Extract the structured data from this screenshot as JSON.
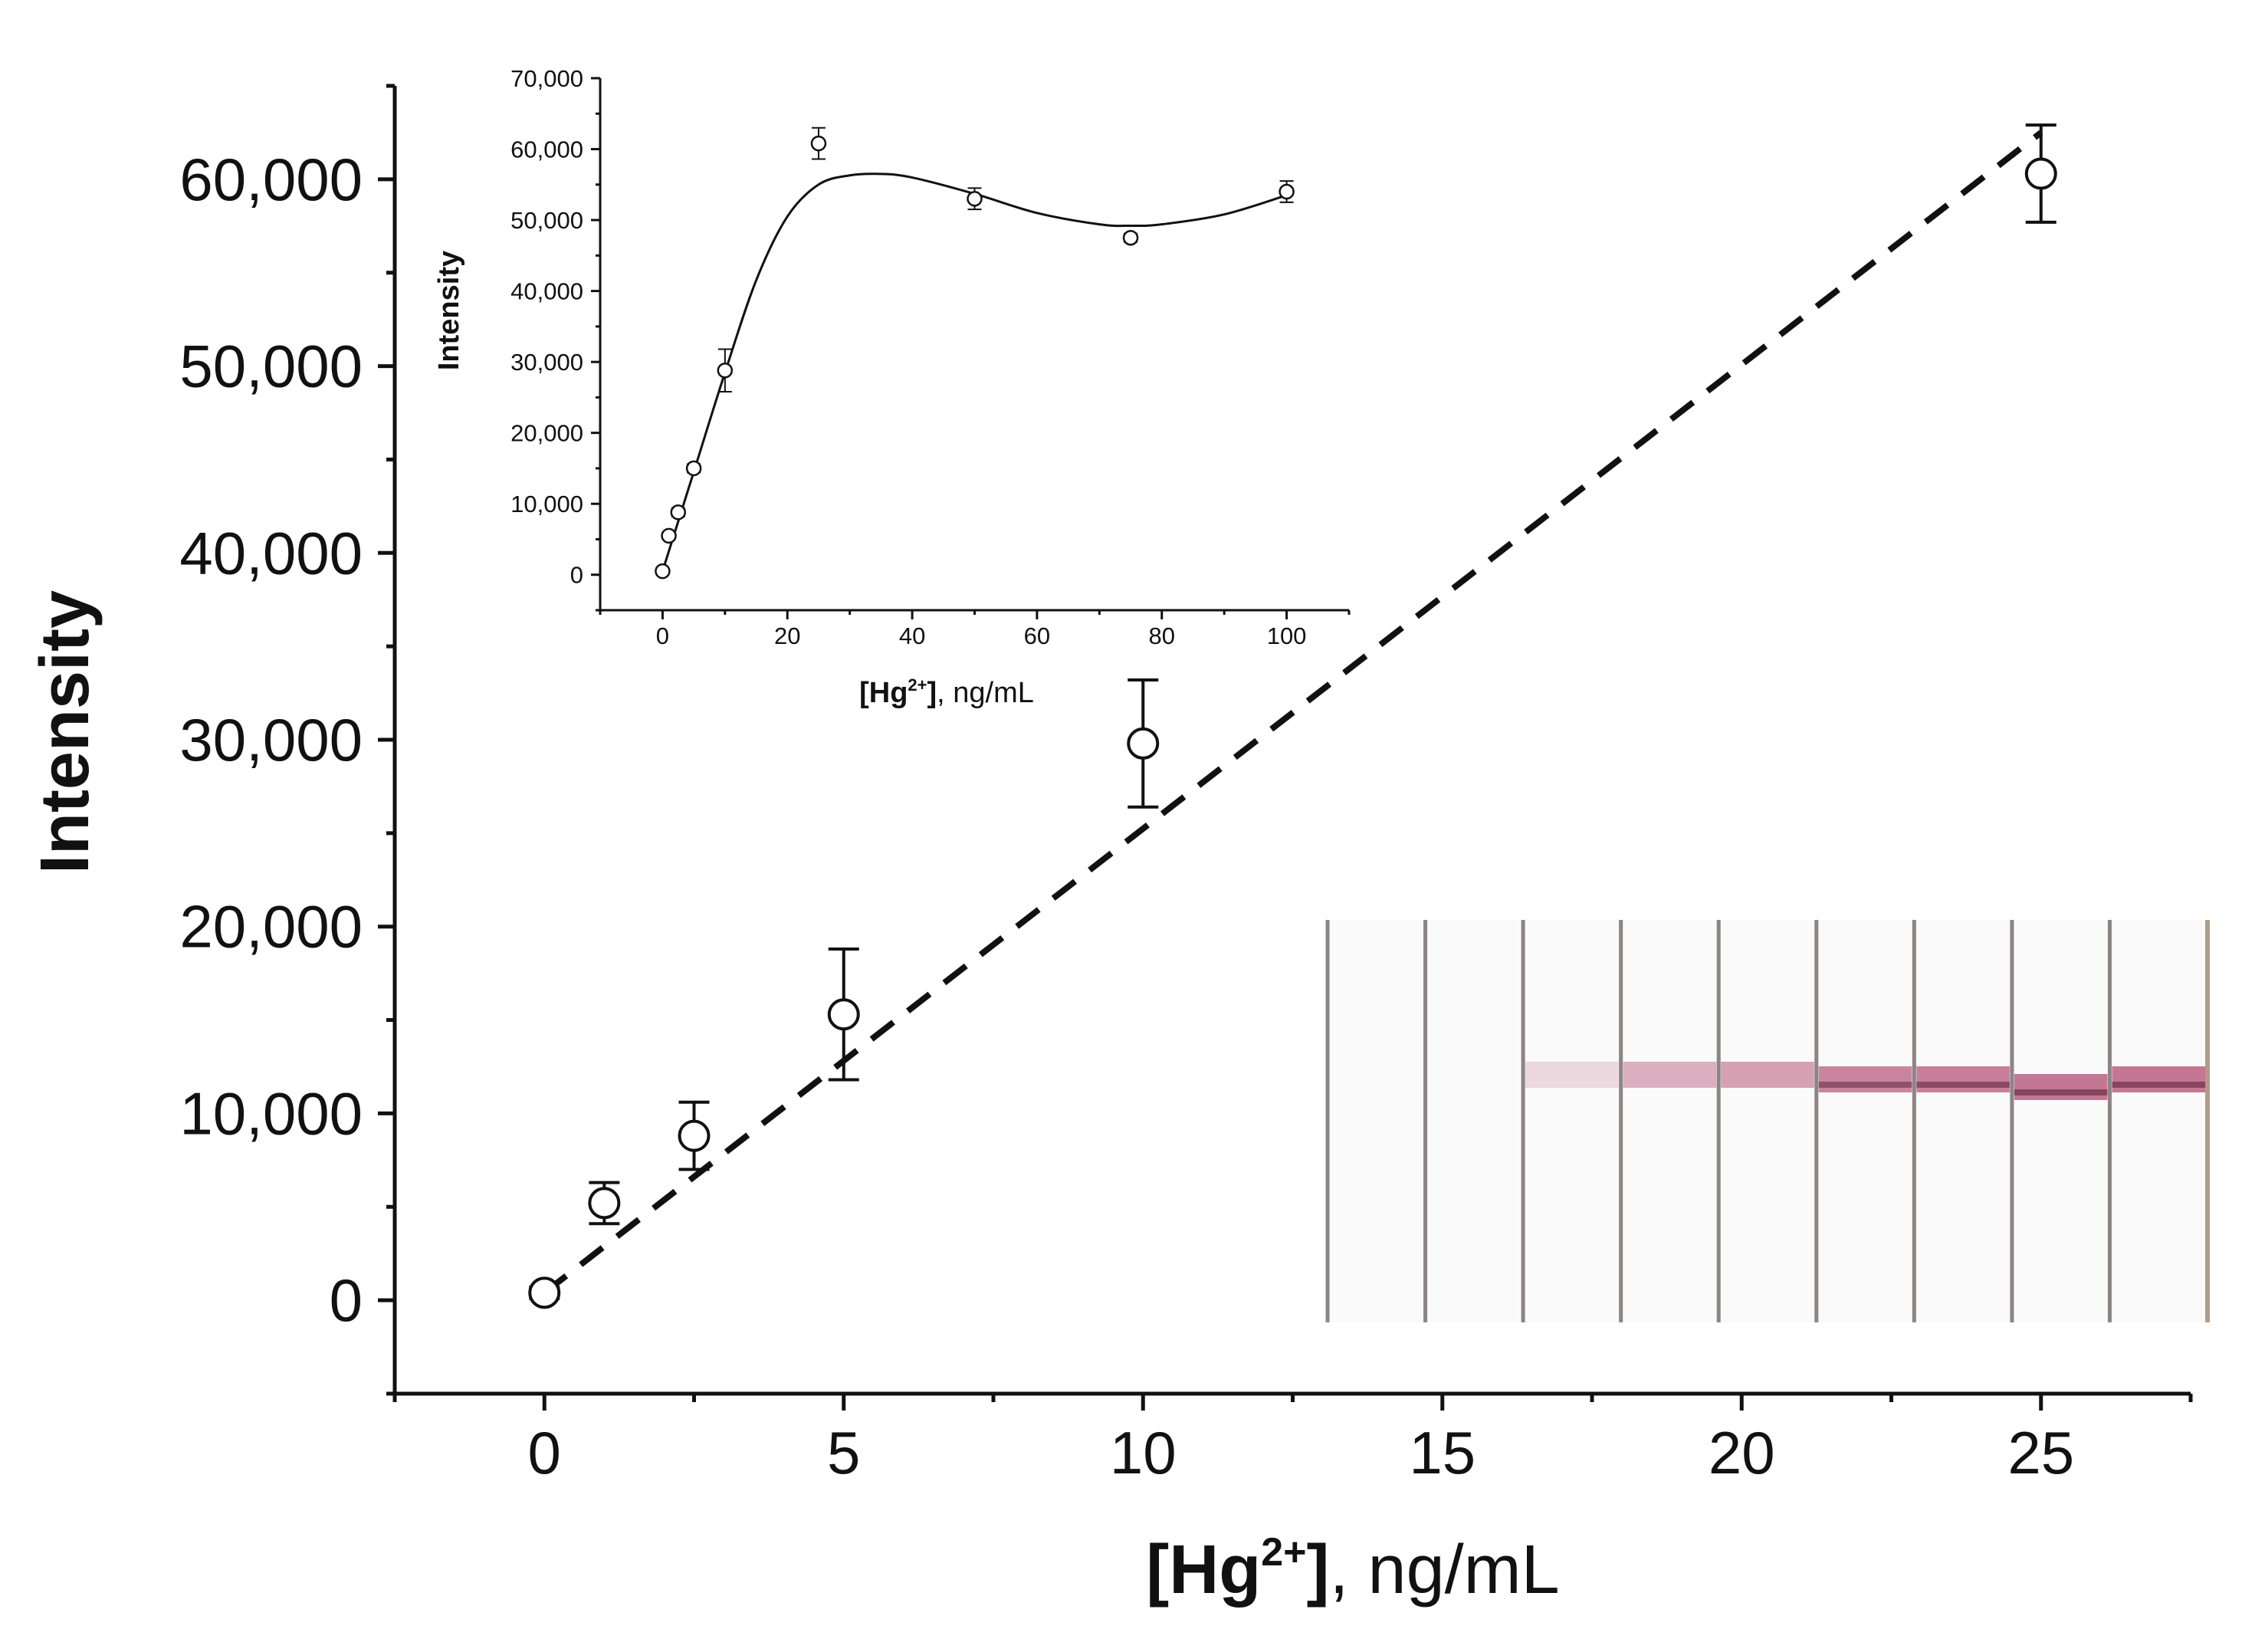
{
  "chart_data": [
    {
      "id": "main",
      "type": "scatter",
      "title": "",
      "ylabel": "Intensity",
      "xlabel": "[Hg2+], ng/mL",
      "xlabel_parts": {
        "bold": "[Hg",
        "sup": "2+",
        "bold_end": "]",
        "rest": ", ng/mL"
      },
      "xlim": [
        -2.5,
        27.5
      ],
      "ylim": [
        -5000,
        65000
      ],
      "x_ticks": [
        0,
        5,
        10,
        15,
        20,
        25
      ],
      "x_tick_labels": [
        "0",
        "5",
        "10",
        "15",
        "20",
        "25"
      ],
      "y_ticks": [
        0,
        10000,
        20000,
        30000,
        40000,
        50000,
        60000
      ],
      "y_tick_labels": [
        "0",
        "10,000",
        "20,000",
        "30,000",
        "40,000",
        "50,000",
        "60,000"
      ],
      "points": [
        {
          "x": 0,
          "y": 400,
          "err": 300
        },
        {
          "x": 1,
          "y": 5200,
          "err": 1100
        },
        {
          "x": 2.5,
          "y": 8800,
          "err": 1800
        },
        {
          "x": 5,
          "y": 15300,
          "err": 3500
        },
        {
          "x": 10,
          "y": 29800,
          "err": 3400
        },
        {
          "x": 25,
          "y": 60300,
          "err": 2600
        }
      ],
      "fit_line": {
        "style": "dashed",
        "x": [
          0,
          25
        ],
        "y": [
          400,
          62500
        ]
      },
      "colors": {
        "ink": "#111111",
        "marker_fill": "#ffffff"
      }
    },
    {
      "id": "inset",
      "type": "scatter",
      "title": "",
      "ylabel": "Intensity",
      "xlabel": "[Hg2+], ng/mL",
      "xlabel_parts": {
        "bold": "[Hg",
        "sup": "2+",
        "bold_end": "]",
        "rest": ", ng/mL"
      },
      "xlim": [
        -10,
        110
      ],
      "ylim": [
        -5000,
        70000
      ],
      "x_ticks": [
        0,
        20,
        40,
        60,
        80,
        100
      ],
      "x_tick_labels": [
        "0",
        "20",
        "40",
        "60",
        "80",
        "100"
      ],
      "y_ticks": [
        0,
        10000,
        20000,
        30000,
        40000,
        50000,
        60000,
        70000
      ],
      "y_tick_labels": [
        "0",
        "10,000",
        "20,000",
        "30,000",
        "40,000",
        "50,000",
        "60,000",
        "70,000"
      ],
      "points": [
        {
          "x": 0,
          "y": 500,
          "err": 300
        },
        {
          "x": 1,
          "y": 5500,
          "err": 500
        },
        {
          "x": 2.5,
          "y": 8800,
          "err": 600
        },
        {
          "x": 5,
          "y": 15000,
          "err": 600
        },
        {
          "x": 10,
          "y": 28800,
          "err": 3000
        },
        {
          "x": 25,
          "y": 60800,
          "err": 2200
        },
        {
          "x": 50,
          "y": 53000,
          "err": 1500
        },
        {
          "x": 75,
          "y": 47500,
          "err": 600
        },
        {
          "x": 100,
          "y": 54000,
          "err": 1500
        }
      ],
      "fit_curve": {
        "style": "solid",
        "x": [
          0,
          5,
          10,
          15,
          20,
          25,
          30,
          35,
          40,
          50,
          60,
          70,
          75,
          80,
          90,
          100
        ],
        "y": [
          500,
          14500,
          28500,
          41500,
          50500,
          55000,
          56300,
          56500,
          56000,
          53700,
          51000,
          49400,
          49200,
          49400,
          50800,
          53500
        ]
      }
    }
  ],
  "photo_inset": {
    "description_name": "test-strip-photo",
    "strip_count": 9,
    "band_color": "#a8365f",
    "band_intensity": [
      0.0,
      0.0,
      0.25,
      0.55,
      0.65,
      0.85,
      0.9,
      0.95,
      0.95
    ]
  }
}
